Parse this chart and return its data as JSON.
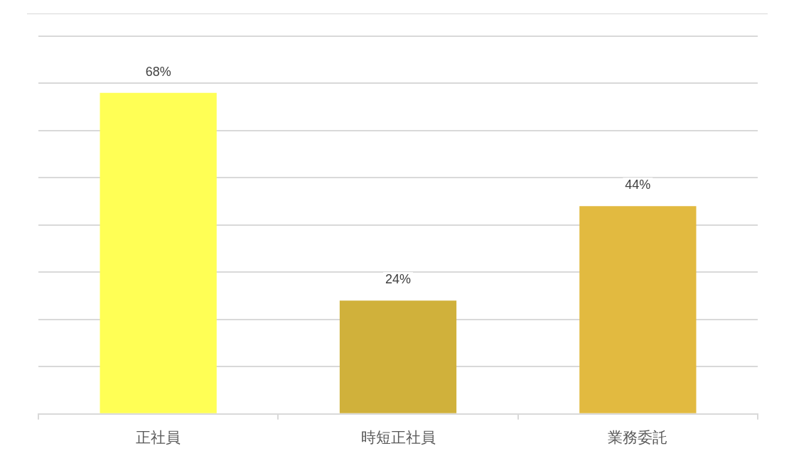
{
  "chart_data": {
    "type": "bar",
    "categories": [
      "正社員",
      "時短正社員",
      "業務委託"
    ],
    "values": [
      68,
      24,
      44
    ],
    "colors": [
      "#ffff55",
      "#d0b13b",
      "#e2ba40"
    ],
    "value_labels": [
      "68%",
      "24%",
      "44%"
    ],
    "ylim": [
      0,
      80
    ],
    "yticks": [
      {
        "value": 0,
        "label": null
      },
      {
        "value": 10,
        "label": null
      },
      {
        "value": 20,
        "label": null
      },
      {
        "value": 30,
        "label": null
      },
      {
        "value": 40,
        "label": null
      },
      {
        "value": 50,
        "label": null
      },
      {
        "value": 60,
        "label": null
      },
      {
        "value": 70,
        "label": null
      },
      {
        "value": 80,
        "label": null
      }
    ],
    "grid": "y",
    "tick_labels": "x"
  }
}
